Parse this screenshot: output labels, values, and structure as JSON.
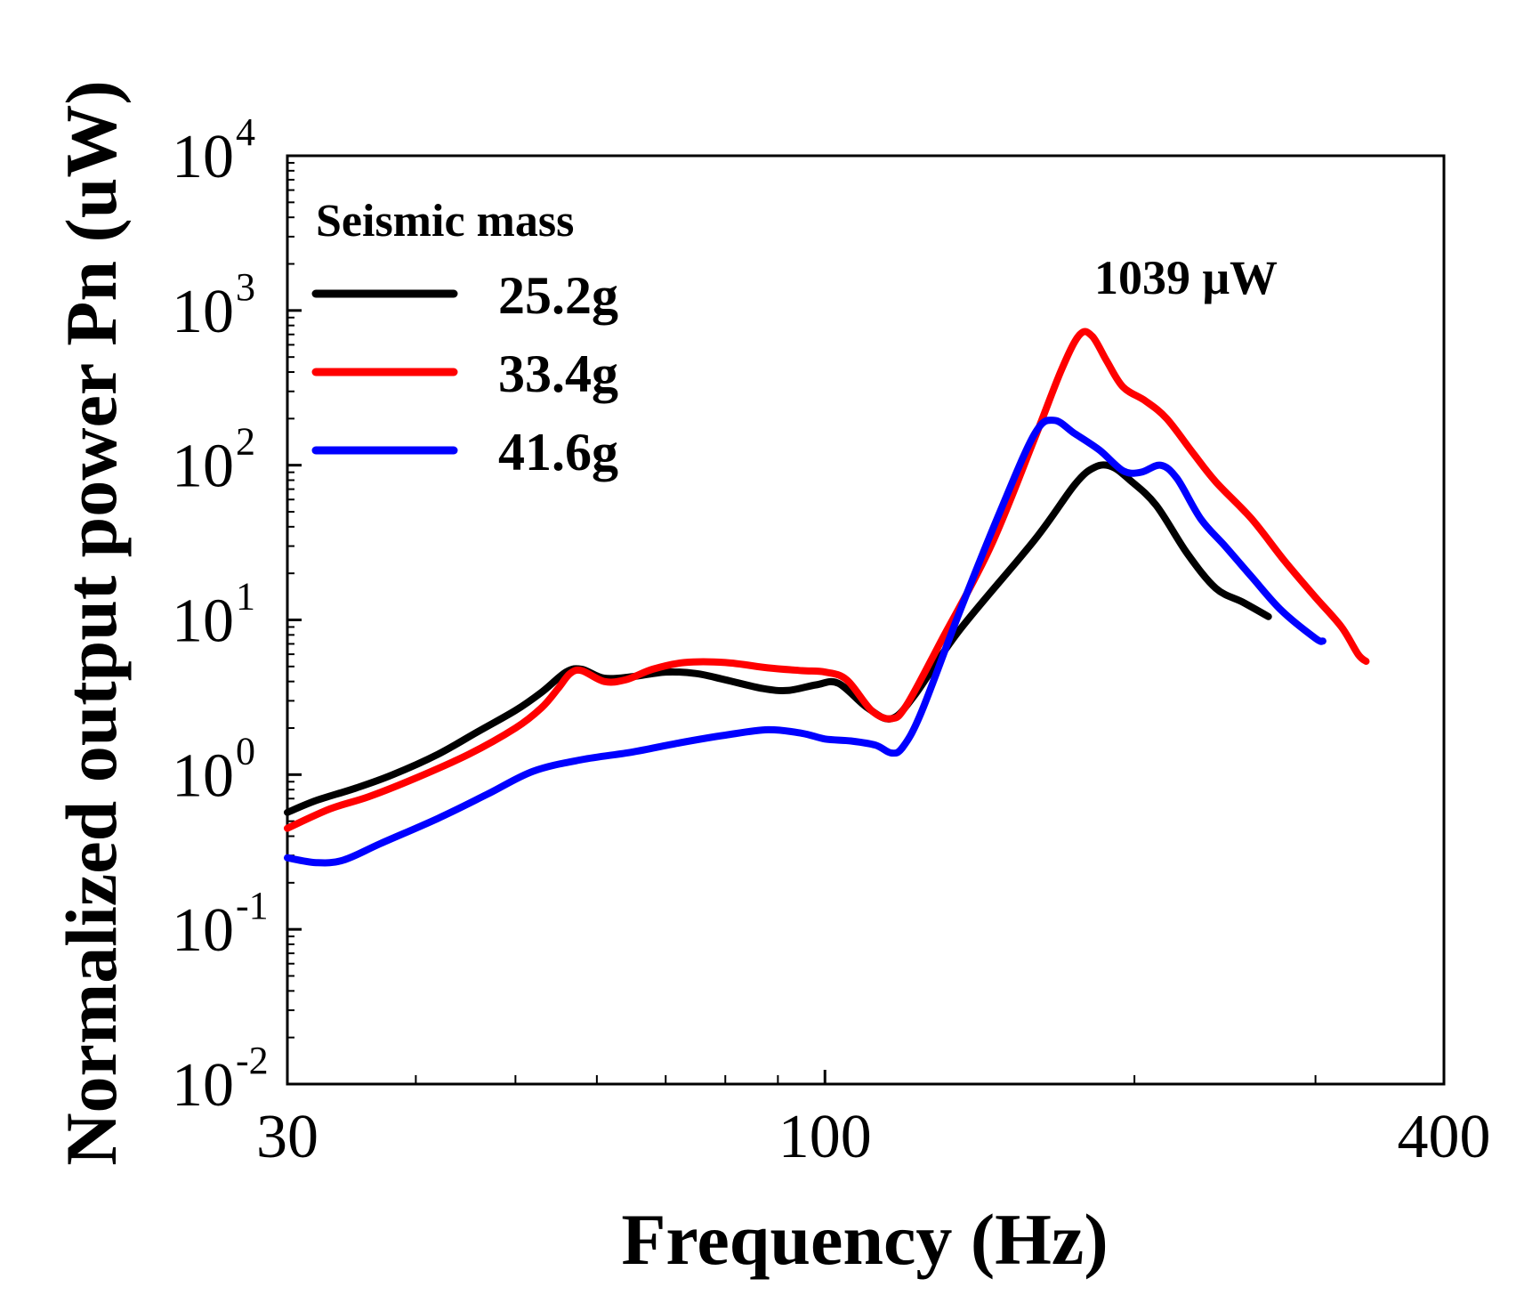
{
  "chart_data": {
    "type": "line",
    "x_scale": "log",
    "y_scale": "log",
    "xlabel": "Frequency (Hz)",
    "ylabel": "Normalized output power Pn (uW)",
    "xlim": [
      30,
      400
    ],
    "ylim": [
      0.01,
      10000
    ],
    "x_ticks": [
      {
        "value": 30,
        "label": "30"
      },
      {
        "value": 100,
        "label": "100"
      },
      {
        "value": 400,
        "label": "400"
      }
    ],
    "x_minor_ticks": [
      40,
      50,
      60,
      70,
      80,
      90,
      200,
      300
    ],
    "y_ticks": [
      {
        "value": 10000,
        "base": "10",
        "exp": "4"
      },
      {
        "value": 1000,
        "base": "10",
        "exp": "3"
      },
      {
        "value": 100,
        "base": "10",
        "exp": "2"
      },
      {
        "value": 10,
        "base": "10",
        "exp": "1"
      },
      {
        "value": 1,
        "base": "10",
        "exp": "0"
      },
      {
        "value": 0.1,
        "base": "10",
        "exp": "-1"
      },
      {
        "value": 0.01,
        "base": "10",
        "exp": "-2"
      }
    ],
    "legend": {
      "title": "Seismic mass",
      "position": "top-left"
    },
    "annotation": {
      "text": "1039 μW",
      "x": 190,
      "y": 1039
    },
    "series": [
      {
        "name": "25.2g",
        "color": "#000000",
        "points": [
          [
            30,
            0.57
          ],
          [
            32,
            0.68
          ],
          [
            35,
            0.82
          ],
          [
            38,
            1.0
          ],
          [
            42,
            1.35
          ],
          [
            46,
            1.9
          ],
          [
            50,
            2.6
          ],
          [
            53,
            3.4
          ],
          [
            56,
            4.6
          ],
          [
            58,
            4.8
          ],
          [
            61,
            4.2
          ],
          [
            65,
            4.3
          ],
          [
            70,
            4.6
          ],
          [
            75,
            4.5
          ],
          [
            80,
            4.1
          ],
          [
            87,
            3.6
          ],
          [
            92,
            3.5
          ],
          [
            98,
            3.8
          ],
          [
            103,
            3.9
          ],
          [
            110,
            2.7
          ],
          [
            116,
            2.3
          ],
          [
            122,
            3.2
          ],
          [
            135,
            8.5
          ],
          [
            160,
            33
          ],
          [
            175,
            75
          ],
          [
            183,
            97
          ],
          [
            190,
            98
          ],
          [
            198,
            80
          ],
          [
            210,
            55
          ],
          [
            225,
            27
          ],
          [
            240,
            16
          ],
          [
            255,
            13
          ],
          [
            270,
            10.5
          ]
        ]
      },
      {
        "name": "33.4g",
        "color": "#ff0000",
        "points": [
          [
            30,
            0.45
          ],
          [
            33,
            0.6
          ],
          [
            36,
            0.72
          ],
          [
            40,
            0.95
          ],
          [
            45,
            1.35
          ],
          [
            50,
            2.0
          ],
          [
            53,
            2.7
          ],
          [
            55,
            3.6
          ],
          [
            56.5,
            4.5
          ],
          [
            58,
            4.7
          ],
          [
            61,
            4.0
          ],
          [
            64,
            4.1
          ],
          [
            68,
            4.8
          ],
          [
            73,
            5.3
          ],
          [
            80,
            5.3
          ],
          [
            88,
            4.9
          ],
          [
            95,
            4.7
          ],
          [
            100,
            4.6
          ],
          [
            105,
            4.1
          ],
          [
            111,
            2.6
          ],
          [
            116,
            2.3
          ],
          [
            120,
            2.8
          ],
          [
            130,
            7.5
          ],
          [
            145,
            30
          ],
          [
            160,
            150
          ],
          [
            170,
            420
          ],
          [
            177,
            700
          ],
          [
            182,
            680
          ],
          [
            188,
            470
          ],
          [
            195,
            320
          ],
          [
            205,
            260
          ],
          [
            215,
            200
          ],
          [
            228,
            120
          ],
          [
            240,
            78
          ],
          [
            260,
            45
          ],
          [
            280,
            24
          ],
          [
            300,
            14
          ],
          [
            318,
            9
          ],
          [
            330,
            6
          ],
          [
            336,
            5.4
          ]
        ]
      },
      {
        "name": "41.6g",
        "color": "#0000ff",
        "points": [
          [
            30,
            0.29
          ],
          [
            32,
            0.27
          ],
          [
            34,
            0.28
          ],
          [
            37,
            0.36
          ],
          [
            42,
            0.52
          ],
          [
            47,
            0.75
          ],
          [
            52,
            1.05
          ],
          [
            58,
            1.25
          ],
          [
            65,
            1.4
          ],
          [
            72,
            1.6
          ],
          [
            80,
            1.8
          ],
          [
            88,
            1.95
          ],
          [
            95,
            1.85
          ],
          [
            100,
            1.7
          ],
          [
            106,
            1.65
          ],
          [
            112,
            1.55
          ],
          [
            116,
            1.38
          ],
          [
            119,
            1.5
          ],
          [
            124,
            2.5
          ],
          [
            135,
            11
          ],
          [
            148,
            50
          ],
          [
            160,
            160
          ],
          [
            167,
            195
          ],
          [
            175,
            160
          ],
          [
            185,
            125
          ],
          [
            195,
            92
          ],
          [
            203,
            90
          ],
          [
            212,
            100
          ],
          [
            220,
            82
          ],
          [
            232,
            45
          ],
          [
            245,
            30
          ],
          [
            260,
            19
          ],
          [
            278,
            11.5
          ],
          [
            300,
            7.6
          ],
          [
            305,
            7.3
          ]
        ]
      }
    ]
  }
}
